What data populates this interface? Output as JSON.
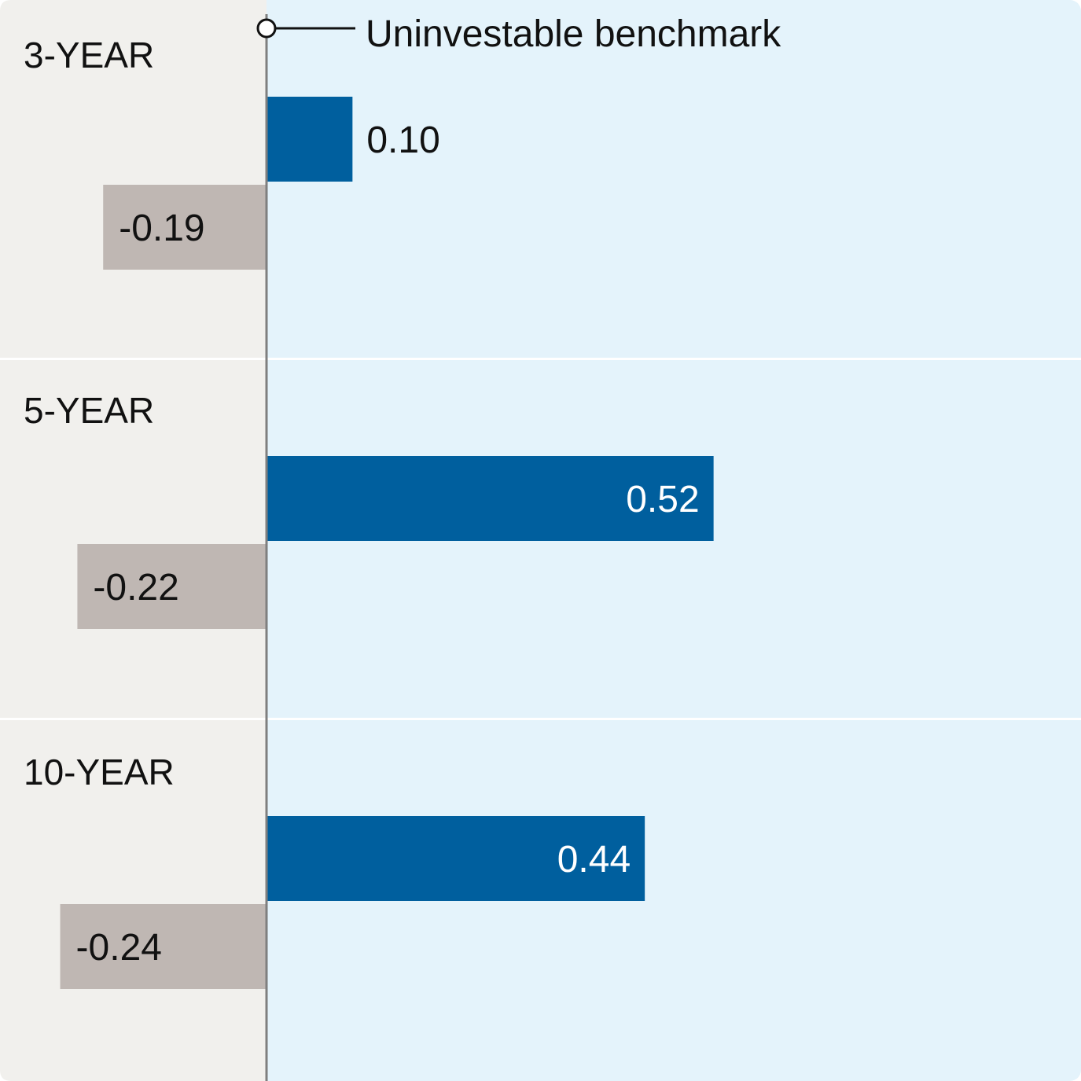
{
  "chart_data": {
    "type": "bar",
    "orientation": "horizontal",
    "annotation": "Uninvestable benchmark",
    "categories": [
      "3-YEAR",
      "5-YEAR",
      "10-YEAR"
    ],
    "series": [
      {
        "values": [
          0.1,
          0.52,
          0.44
        ],
        "value_labels": [
          "0.10",
          "0.52",
          "0.44"
        ]
      },
      {
        "values": [
          -0.19,
          -0.22,
          -0.24
        ],
        "value_labels": [
          "-0.19",
          "-0.22",
          "-0.24"
        ]
      }
    ],
    "xlim": [
      -0.31,
      0.94
    ],
    "grid": false,
    "legend": "none",
    "colors": {
      "positive_bar": "#005f9e",
      "negative_bar": "#bfb7b3",
      "positive_region": "#e4f3fb",
      "negative_region": "#f1f0ed",
      "baseline": "#7f7f7f",
      "text_dark": "#111111",
      "text_light": "#ffffff"
    }
  }
}
